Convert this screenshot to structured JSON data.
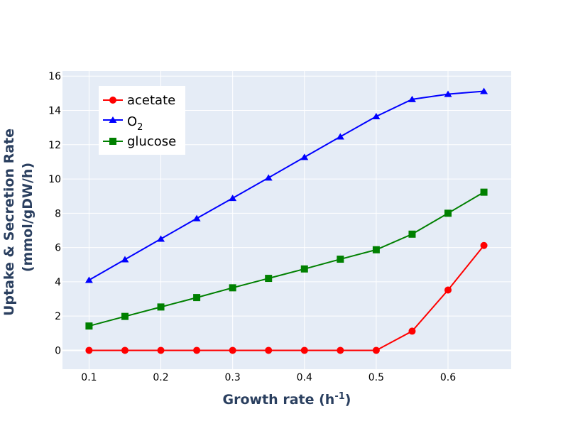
{
  "chart_data": {
    "type": "line",
    "x": [
      0.1,
      0.15,
      0.2,
      0.25,
      0.3,
      0.35,
      0.4,
      0.45,
      0.5,
      0.55,
      0.6,
      0.65
    ],
    "series": [
      {
        "name": "acetate",
        "color": "#ff0000",
        "marker": "circle",
        "values": [
          0,
          0,
          0,
          0,
          0,
          0,
          0,
          0,
          0,
          1.12,
          3.52,
          6.12
        ]
      },
      {
        "name": "O2",
        "color": "#0000ff",
        "marker": "triangle",
        "values": [
          4.1,
          5.3,
          6.5,
          7.7,
          8.88,
          10.07,
          11.27,
          12.47,
          13.65,
          14.65,
          14.95,
          15.12
        ]
      },
      {
        "name": "glucose",
        "color": "#008000",
        "marker": "square",
        "values": [
          1.42,
          1.98,
          2.53,
          3.08,
          3.65,
          4.2,
          4.75,
          5.32,
          5.87,
          6.78,
          8.0,
          9.23
        ]
      }
    ],
    "legend": {
      "entries": [
        {
          "main": "acetate",
          "sub": ""
        },
        {
          "main": "O",
          "sub": "2"
        },
        {
          "main": "glucose",
          "sub": ""
        }
      ],
      "placement": "top-left"
    },
    "xlabel": {
      "main": "Growth rate (h",
      "sup": "-1",
      "tail": ")"
    },
    "ylabel": {
      "line1": "Uptake & Secretion Rate",
      "line2": "(mmol/gDW/h)"
    },
    "xlim": [
      0.063,
      0.688
    ],
    "ylim": [
      -1.1,
      16.3
    ],
    "xticks": [
      "0.1",
      "0.2",
      "0.3",
      "0.4",
      "0.5",
      "0.6"
    ],
    "xtick_values": [
      0.1,
      0.2,
      0.3,
      0.4,
      0.5,
      0.6
    ],
    "yticks": [
      "0",
      "2",
      "4",
      "6",
      "8",
      "10",
      "12",
      "14",
      "16"
    ],
    "ytick_values": [
      0,
      2,
      4,
      6,
      8,
      10,
      12,
      14,
      16
    ],
    "grid": true,
    "plot_background": "#e5ecf6",
    "grid_color": "#ffffff"
  }
}
